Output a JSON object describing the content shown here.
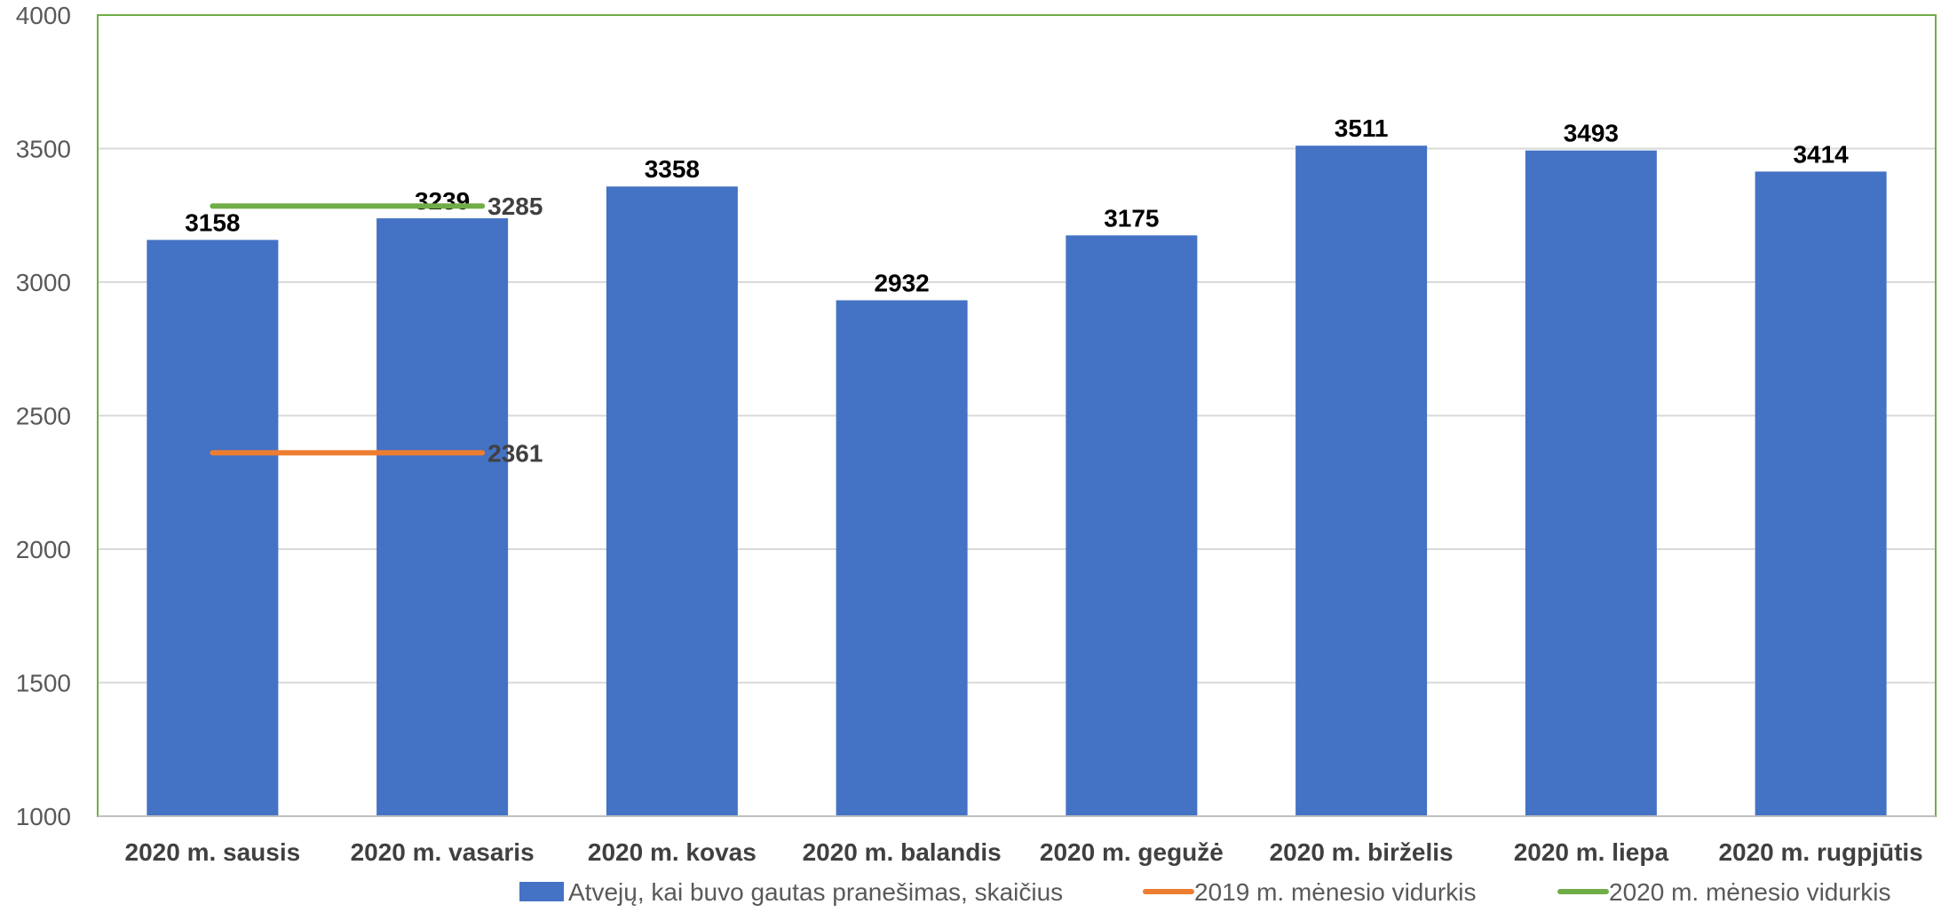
{
  "chart_data": {
    "type": "bar",
    "title": "",
    "xlabel": "",
    "ylabel": "",
    "ylim": [
      1000,
      4000
    ],
    "yticks": [
      1000,
      1500,
      2000,
      2500,
      3000,
      3500,
      4000
    ],
    "grid": true,
    "legend_position": "bottom",
    "categories": [
      "2020 m. sausis",
      "2020 m. vasaris",
      "2020 m. kovas",
      "2020 m. balandis",
      "2020 m. gegužė",
      "2020 m. birželis",
      "2020 m. liepa",
      "2020 m. rugpjūtis"
    ],
    "series": [
      {
        "name": "Atvejų, kai buvo gautas pranešimas, skaičius",
        "type": "bar",
        "color": "#4472C4",
        "values": [
          3158,
          3239,
          3358,
          2932,
          3175,
          3511,
          3493,
          3414
        ]
      }
    ],
    "reference_lines": [
      {
        "name": "2019 m. mėnesio vidurkis",
        "type": "line",
        "color": "#ED7D31",
        "value": 2361,
        "span_categories": [
          "2020 m. sausis",
          "2020 m. vasaris"
        ]
      },
      {
        "name": "2020 m. mėnesio vidurkis",
        "type": "line",
        "color": "#70AD47",
        "value": 3285,
        "span_categories": [
          "2020 m. sausis",
          "2020 m. vasaris"
        ]
      }
    ],
    "plot_border_color": "#70AD47",
    "gridline_color": "#D9D9D9"
  }
}
